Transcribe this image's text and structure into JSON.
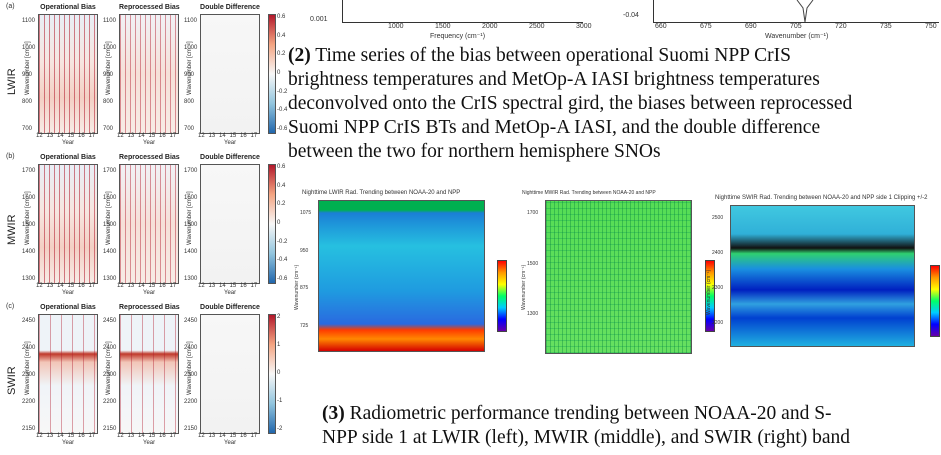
{
  "left_figure": {
    "panel_titles": [
      "Operational Bias",
      "Reprocessed Bias",
      "Double Difference"
    ],
    "x_label": "Year",
    "x_ticks": [
      "12",
      "13",
      "14",
      "15",
      "16",
      "17"
    ],
    "y_label": "Wavenumber [cm⁻¹]",
    "rows": [
      {
        "label": "(a)",
        "band": "LWIR",
        "y_ticks": [
          "1100",
          "1000",
          "900",
          "800",
          "700"
        ],
        "cbar_ticks": [
          "0.6",
          "0.4",
          "0.2",
          "0",
          "-0.2",
          "-0.4",
          "-0.6"
        ]
      },
      {
        "label": "(b)",
        "band": "MWIR",
        "y_ticks": [
          "1700",
          "1600",
          "1500",
          "1400",
          "1300"
        ],
        "cbar_ticks": [
          "0.6",
          "0.4",
          "0.2",
          "0",
          "-0.2",
          "-0.4",
          "-0.6"
        ]
      },
      {
        "label": "(c)",
        "band": "SWIR",
        "y_ticks": [
          "2450",
          "2400",
          "2300",
          "2200",
          "2150"
        ],
        "cbar_ticks": [
          "2",
          "1",
          "0",
          "-1",
          "-2"
        ]
      }
    ]
  },
  "top_middle": {
    "y_tick": "0.001",
    "x_ticks": [
      "1000",
      "1500",
      "2000",
      "2500",
      "3000"
    ],
    "x_label": "Frequency (cm⁻¹)"
  },
  "top_right": {
    "y_tick": "-0.04",
    "x_ticks": [
      "660",
      "675",
      "690",
      "705",
      "720",
      "735",
      "750"
    ],
    "x_label": "Wavenumber (cm⁻¹)"
  },
  "caption_2": {
    "number": "(2)",
    "lines": [
      "Time series of the bias between operational Suomi NPP CrIS",
      "brightness temperatures and MetOp-A IASI brightness temperatures",
      "deconvolved onto the CrIS spectral gird, the biases between reprocessed",
      "Suomi NPP CrIS BTs and MetOp-A IASI, and the double difference",
      "between the two for northern hemisphere SNOs"
    ]
  },
  "trending": [
    {
      "title": "Nighttime LWIR Rad. Trending between NOAA-20 and NPP",
      "y_label": "Wavenumber (cm⁻¹)",
      "y_ticks": [
        "1075",
        "950",
        "875",
        "725"
      ]
    },
    {
      "title": "Nighttime MWIR Rad. Trending between NOAA-20 and NPP",
      "y_label": "Wavenumber (cm⁻¹)",
      "y_ticks": [
        "1700",
        "1500",
        "1300"
      ]
    },
    {
      "title": "Nighttime SWIR Rad. Trending between NOAA-20 and NPP side 1 Clipping +/-2",
      "y_label": "Wavenumber (cm⁻¹)",
      "y_ticks": [
        "2500",
        "2400",
        "2300",
        "2200"
      ]
    }
  ],
  "caption_3": {
    "number": "(3)",
    "lines": [
      "Radiometric performance trending between NOAA-20 and S-",
      "NPP side 1 at LWIR (left), MWIR (middle), and SWIR (right) band"
    ]
  }
}
